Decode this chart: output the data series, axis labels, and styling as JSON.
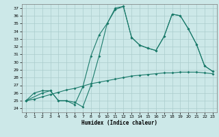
{
  "xlabel": "Humidex (Indice chaleur)",
  "bg_color": "#cce8e8",
  "line_color": "#1a7a6a",
  "grid_color": "#aacccc",
  "xlim": [
    -0.5,
    23.5
  ],
  "ylim": [
    23.5,
    37.5
  ],
  "xticks": [
    0,
    1,
    2,
    3,
    4,
    5,
    6,
    7,
    8,
    9,
    10,
    11,
    12,
    13,
    14,
    15,
    16,
    17,
    18,
    19,
    20,
    21,
    22,
    23
  ],
  "yticks": [
    24,
    25,
    26,
    27,
    28,
    29,
    30,
    31,
    32,
    33,
    34,
    35,
    36,
    37
  ],
  "line1_x": [
    0,
    1,
    2,
    3,
    4,
    5,
    6,
    7,
    8,
    9,
    10,
    11,
    12,
    13,
    14,
    15,
    16,
    17,
    18,
    19,
    20,
    21,
    22,
    23
  ],
  "line1_y": [
    25.0,
    25.2,
    25.5,
    25.8,
    26.1,
    26.4,
    26.6,
    26.9,
    27.2,
    27.4,
    27.6,
    27.8,
    28.0,
    28.2,
    28.3,
    28.4,
    28.5,
    28.6,
    28.6,
    28.7,
    28.7,
    28.7,
    28.6,
    28.5
  ],
  "line2_x": [
    0,
    1,
    2,
    3,
    4,
    5,
    6,
    7,
    8,
    9,
    10,
    11,
    12,
    13,
    14,
    15,
    16,
    17,
    18,
    19,
    20,
    21,
    22,
    23
  ],
  "line2_y": [
    25.0,
    26.0,
    26.3,
    26.3,
    25.0,
    25.0,
    24.8,
    24.2,
    27.0,
    30.8,
    35.0,
    36.8,
    37.2,
    33.2,
    32.2,
    31.8,
    31.5,
    33.3,
    36.2,
    36.0,
    34.3,
    32.3,
    29.5,
    28.8
  ],
  "line3_x": [
    0,
    2,
    3,
    4,
    5,
    6,
    7,
    8,
    9,
    10,
    11,
    12,
    13,
    14,
    15,
    16,
    17,
    18,
    19,
    20,
    21,
    22,
    23
  ],
  "line3_y": [
    25.0,
    26.0,
    26.3,
    25.0,
    25.0,
    24.5,
    26.8,
    30.8,
    33.5,
    35.0,
    37.0,
    37.2,
    33.2,
    32.2,
    31.8,
    31.5,
    33.3,
    36.2,
    36.0,
    34.3,
    32.3,
    29.5,
    28.8
  ]
}
